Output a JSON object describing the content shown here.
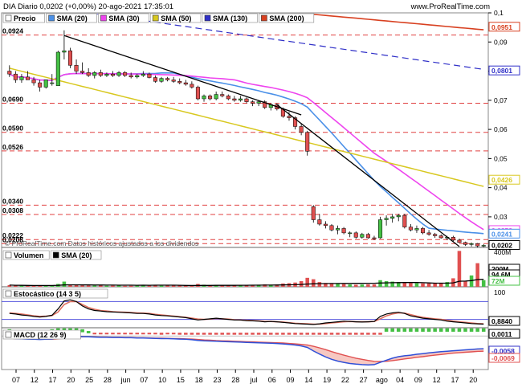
{
  "header": {
    "title": "DIA Diario 0,0202 (+0,00%) 20-ago-2021 17:35:01",
    "brand": "www.ProRealTime.com"
  },
  "colors": {
    "up": "#44c044",
    "down": "#e05050",
    "sma20": "#4a90e8",
    "sma30": "#ee44ee",
    "sma50": "#d8c820",
    "sma130": "#3030c8",
    "sma200": "#d84020",
    "trend": "#000000",
    "hline": "#e04040"
  },
  "legends": {
    "price": [
      {
        "label": "Precio",
        "color": "#ffffff"
      },
      {
        "label": "SMA (20)",
        "color": "#4a90e8"
      },
      {
        "label": "SMA (30)",
        "color": "#ee44ee"
      },
      {
        "label": "SMA (50)",
        "color": "#d8c820"
      },
      {
        "label": "SMA (130)",
        "color": "#3030c8"
      },
      {
        "label": "SMA (200)",
        "color": "#d84020"
      }
    ],
    "volume": [
      {
        "label": "Volumen",
        "color": "#ffffff"
      },
      {
        "label": "SMA (20)",
        "color": "#000000"
      }
    ],
    "stoch": [
      {
        "label": "Estocástico (14 3 5)",
        "color": "#ffffff"
      }
    ],
    "macd": [
      {
        "label": "MACD (12 26 9)",
        "color": "#ffffff"
      }
    ]
  },
  "footer_note": "© ProRealTime.com Datos históricos ajustados a los dividendos",
  "chart_data": {
    "type": "candlestick",
    "x_ticks": [
      "07",
      "12",
      "17",
      "20",
      "25",
      "28",
      "jun",
      "07",
      "10",
      "15",
      "18",
      "23",
      "28",
      "jul",
      "06",
      "09",
      "14",
      "19",
      "22",
      "27",
      "ago",
      "04",
      "09",
      "12",
      "17",
      "20"
    ],
    "price_axis": {
      "ylim": [
        0.0195,
        0.1
      ],
      "ticks": [
        "0,1",
        "0,09",
        "0,08",
        "0,07",
        "0,06",
        "0,05",
        "0,04",
        "0,03",
        "0,02"
      ],
      "left_labels": [
        "0,0924",
        "0,0690",
        "0,0590",
        "0,0526",
        "0,0340",
        "0,0308",
        "0,0222",
        "0,0208"
      ],
      "right_labels": [
        {
          "text": "0,0951",
          "color": "#d84020"
        },
        {
          "text": "0,0801",
          "color": "#3030c8"
        },
        {
          "text": "0,0426",
          "color": "#d8c820"
        },
        {
          "text": "0,0253",
          "color": "#ee44ee"
        },
        {
          "text": "0,0241",
          "color": "#4a90e8"
        },
        {
          "text": "0,0202",
          "color": "#000000"
        }
      ],
      "resistance_levels": [
        0.0924,
        0.069,
        0.059,
        0.0526,
        0.034,
        0.0308,
        0.0222,
        0.0208
      ]
    },
    "ohlc": [
      [
        0.08,
        0.082,
        0.078,
        0.079
      ],
      [
        0.079,
        0.08,
        0.076,
        0.077
      ],
      [
        0.077,
        0.079,
        0.076,
        0.078
      ],
      [
        0.078,
        0.08,
        0.077,
        0.077
      ],
      [
        0.077,
        0.078,
        0.075,
        0.076
      ],
      [
        0.076,
        0.077,
        0.073,
        0.0745
      ],
      [
        0.0745,
        0.077,
        0.074,
        0.077
      ],
      [
        0.076,
        0.079,
        0.075,
        0.076
      ],
      [
        0.075,
        0.087,
        0.075,
        0.0865
      ],
      [
        0.0865,
        0.094,
        0.084,
        0.087
      ],
      [
        0.087,
        0.088,
        0.081,
        0.082
      ],
      [
        0.082,
        0.084,
        0.079,
        0.08
      ],
      [
        0.08,
        0.083,
        0.079,
        0.0795
      ],
      [
        0.0795,
        0.081,
        0.078,
        0.0785
      ],
      [
        0.0785,
        0.08,
        0.0775,
        0.0795
      ],
      [
        0.0795,
        0.0805,
        0.078,
        0.0785
      ],
      [
        0.0785,
        0.0795,
        0.078,
        0.079
      ],
      [
        0.079,
        0.08,
        0.078,
        0.0785
      ],
      [
        0.0785,
        0.08,
        0.078,
        0.0795
      ],
      [
        0.0795,
        0.08,
        0.078,
        0.0785
      ],
      [
        0.0785,
        0.0795,
        0.0775,
        0.078
      ],
      [
        0.078,
        0.079,
        0.0775,
        0.0785
      ],
      [
        0.0785,
        0.08,
        0.078,
        0.079
      ],
      [
        0.079,
        0.0795,
        0.0775,
        0.0778
      ],
      [
        0.0778,
        0.0785,
        0.076,
        0.0765
      ],
      [
        0.0765,
        0.078,
        0.076,
        0.0775
      ],
      [
        0.0775,
        0.078,
        0.0765,
        0.077
      ],
      [
        0.077,
        0.078,
        0.076,
        0.0765
      ],
      [
        0.0765,
        0.0775,
        0.0755,
        0.076
      ],
      [
        0.076,
        0.077,
        0.075,
        0.0755
      ],
      [
        0.0755,
        0.0765,
        0.074,
        0.0745
      ],
      [
        0.0745,
        0.075,
        0.07,
        0.0705
      ],
      [
        0.0705,
        0.072,
        0.0695,
        0.0715
      ],
      [
        0.0715,
        0.072,
        0.07,
        0.0705
      ],
      [
        0.0705,
        0.073,
        0.07,
        0.072
      ],
      [
        0.072,
        0.073,
        0.071,
        0.0715
      ],
      [
        0.0715,
        0.072,
        0.07,
        0.0705
      ],
      [
        0.0705,
        0.0715,
        0.0695,
        0.07
      ],
      [
        0.07,
        0.0715,
        0.0695,
        0.0705
      ],
      [
        0.0705,
        0.071,
        0.069,
        0.0695
      ],
      [
        0.0695,
        0.07,
        0.068,
        0.069
      ],
      [
        0.069,
        0.07,
        0.068,
        0.0695
      ],
      [
        0.0695,
        0.07,
        0.067,
        0.0675
      ],
      [
        0.0675,
        0.069,
        0.0665,
        0.0685
      ],
      [
        0.0685,
        0.069,
        0.0665,
        0.067
      ],
      [
        0.067,
        0.0675,
        0.064,
        0.0645
      ],
      [
        0.0645,
        0.066,
        0.063,
        0.064
      ],
      [
        0.064,
        0.0645,
        0.06,
        0.061
      ],
      [
        0.061,
        0.062,
        0.058,
        0.059
      ],
      [
        0.059,
        0.0595,
        0.051,
        0.0525
      ],
      [
        0.0335,
        0.034,
        0.028,
        0.029
      ],
      [
        0.029,
        0.031,
        0.027,
        0.0275
      ],
      [
        0.0275,
        0.0285,
        0.026,
        0.027
      ],
      [
        0.027,
        0.0275,
        0.025,
        0.0255
      ],
      [
        0.0255,
        0.027,
        0.024,
        0.026
      ],
      [
        0.026,
        0.0265,
        0.024,
        0.0245
      ],
      [
        0.0245,
        0.025,
        0.023,
        0.0245
      ],
      [
        0.0245,
        0.025,
        0.0225,
        0.023
      ],
      [
        0.023,
        0.0245,
        0.0225,
        0.024
      ],
      [
        0.024,
        0.0245,
        0.0225,
        0.0228
      ],
      [
        0.0228,
        0.0235,
        0.022,
        0.0225
      ],
      [
        0.0228,
        0.03,
        0.0225,
        0.029
      ],
      [
        0.029,
        0.0305,
        0.027,
        0.0295
      ],
      [
        0.0295,
        0.031,
        0.028,
        0.03
      ],
      [
        0.03,
        0.031,
        0.0285,
        0.0305
      ],
      [
        0.0305,
        0.031,
        0.026,
        0.0265
      ],
      [
        0.0265,
        0.0275,
        0.025,
        0.0255
      ],
      [
        0.0255,
        0.027,
        0.0245,
        0.026
      ],
      [
        0.026,
        0.0265,
        0.024,
        0.0245
      ],
      [
        0.0245,
        0.0255,
        0.0235,
        0.024
      ],
      [
        0.024,
        0.0245,
        0.0228,
        0.0235
      ],
      [
        0.0235,
        0.024,
        0.0225,
        0.0228
      ],
      [
        0.0228,
        0.0235,
        0.022,
        0.023
      ],
      [
        0.023,
        0.0235,
        0.0215,
        0.022
      ],
      [
        0.022,
        0.0225,
        0.021,
        0.0212
      ],
      [
        0.0212,
        0.0215,
        0.02,
        0.0205
      ],
      [
        0.0205,
        0.0212,
        0.0198,
        0.0208
      ],
      [
        0.0208,
        0.021,
        0.0195,
        0.02
      ],
      [
        0.02,
        0.0206,
        0.0196,
        0.0202
      ]
    ],
    "trend_lines": [
      {
        "from": [
          9,
          0.0922
        ],
        "to": [
          48,
          0.065
        ]
      },
      {
        "from": [
          44,
          0.0685
        ],
        "to": [
          74,
          0.0198
        ]
      }
    ],
    "volume": {
      "ylim": [
        0,
        400
      ],
      "ticks": [
        "400M"
      ],
      "right_labels": [
        {
          "text": "200M",
          "color": "#000000"
        },
        {
          "text": "94,6M",
          "color": "#000000"
        },
        {
          "text": "72M",
          "color": "#44c044"
        }
      ],
      "values": [
        18,
        15,
        12,
        14,
        10,
        12,
        16,
        13,
        30,
        55,
        25,
        20,
        15,
        14,
        12,
        13,
        11,
        12,
        13,
        10,
        11,
        12,
        14,
        12,
        18,
        12,
        13,
        14,
        15,
        16,
        18,
        30,
        22,
        18,
        20,
        17,
        15,
        14,
        16,
        18,
        20,
        22,
        25,
        22,
        24,
        35,
        38,
        45,
        60,
        95,
        80,
        50,
        40,
        35,
        30,
        28,
        25,
        22,
        24,
        26,
        25,
        70,
        60,
        55,
        50,
        45,
        40,
        38,
        36,
        35,
        38,
        40,
        50,
        90,
        380,
        60,
        120,
        250,
        70
      ]
    },
    "stochastic": {
      "ylim": [
        0,
        100
      ],
      "ticks": [
        "100"
      ],
      "level_lines": [
        80,
        20
      ],
      "right_labels": [
        {
          "text": "0,8840",
          "color": "#000000"
        }
      ],
      "k": [
        40,
        38,
        35,
        33,
        30,
        28,
        30,
        34,
        55,
        82,
        86,
        80,
        65,
        55,
        50,
        48,
        46,
        45,
        44,
        43,
        42,
        40,
        40,
        38,
        35,
        33,
        32,
        30,
        28,
        26,
        22,
        18,
        20,
        22,
        24,
        22,
        20,
        18,
        18,
        16,
        15,
        14,
        12,
        13,
        12,
        10,
        8,
        6,
        5,
        4,
        3,
        5,
        8,
        10,
        12,
        14,
        13,
        12,
        11,
        12,
        13,
        30,
        38,
        42,
        44,
        40,
        32,
        28,
        24,
        22,
        20,
        18,
        14,
        12,
        10,
        8,
        6,
        5,
        4
      ],
      "d": [
        42,
        40,
        38,
        35,
        32,
        30,
        31,
        33,
        45,
        70,
        80,
        80,
        70,
        60,
        54,
        50,
        48,
        46,
        45,
        44,
        43,
        42,
        41,
        40,
        37,
        35,
        33,
        31,
        29,
        27,
        24,
        21,
        20,
        21,
        23,
        22,
        21,
        19,
        18,
        17,
        16,
        15,
        13,
        13,
        12,
        11,
        9,
        7,
        6,
        5,
        4,
        4,
        6,
        8,
        10,
        12,
        13,
        12,
        12,
        12,
        13,
        22,
        32,
        38,
        42,
        41,
        36,
        31,
        27,
        24,
        22,
        20,
        17,
        14,
        12,
        10,
        8,
        6,
        5
      ]
    },
    "macd": {
      "right_labels": [
        {
          "text": "0,0011",
          "color": "#000000"
        },
        {
          "text": "-0,0058",
          "color": "#3030c8"
        },
        {
          "text": "-0,0069",
          "color": "#e05050"
        }
      ],
      "macd": [
        -0.001,
        -0.0012,
        -0.0013,
        -0.0014,
        -0.0015,
        -0.0016,
        -0.0015,
        -0.0014,
        -0.0008,
        -0.0002,
        0.0,
        -0.0001,
        -0.0003,
        -0.0004,
        -0.0005,
        -0.0006,
        -0.0006,
        -0.0007,
        -0.0007,
        -0.0008,
        -0.0008,
        -0.0009,
        -0.0009,
        -0.001,
        -0.0011,
        -0.0012,
        -0.0012,
        -0.0013,
        -0.0014,
        -0.0015,
        -0.0017,
        -0.002,
        -0.0022,
        -0.0023,
        -0.0024,
        -0.0025,
        -0.0026,
        -0.0027,
        -0.0028,
        -0.0029,
        -0.003,
        -0.0031,
        -0.0032,
        -0.0033,
        -0.0034,
        -0.0036,
        -0.0038,
        -0.0041,
        -0.0045,
        -0.0052,
        -0.0068,
        -0.0082,
        -0.0095,
        -0.0106,
        -0.0114,
        -0.012,
        -0.0125,
        -0.0128,
        -0.013,
        -0.0131,
        -0.013,
        -0.012,
        -0.011,
        -0.0101,
        -0.0094,
        -0.009,
        -0.0087,
        -0.0083,
        -0.008,
        -0.0077,
        -0.0074,
        -0.0071,
        -0.0069,
        -0.0067,
        -0.0065,
        -0.0063,
        -0.0061,
        -0.0059,
        -0.0058
      ],
      "signal": [
        -0.0011,
        -0.0012,
        -0.0012,
        -0.0013,
        -0.0014,
        -0.0015,
        -0.0015,
        -0.0015,
        -0.0013,
        -0.001,
        -0.0007,
        -0.0005,
        -0.0004,
        -0.0004,
        -0.0004,
        -0.0005,
        -0.0005,
        -0.0006,
        -0.0006,
        -0.0007,
        -0.0007,
        -0.0008,
        -0.0008,
        -0.0009,
        -0.001,
        -0.001,
        -0.0011,
        -0.0012,
        -0.0012,
        -0.0013,
        -0.0014,
        -0.0016,
        -0.0018,
        -0.0019,
        -0.0021,
        -0.0022,
        -0.0023,
        -0.0024,
        -0.0025,
        -0.0026,
        -0.0027,
        -0.0028,
        -0.0029,
        -0.003,
        -0.0031,
        -0.0032,
        -0.0034,
        -0.0036,
        -0.0038,
        -0.0041,
        -0.0047,
        -0.0054,
        -0.0062,
        -0.0071,
        -0.0079,
        -0.0087,
        -0.0094,
        -0.0101,
        -0.0106,
        -0.0111,
        -0.0115,
        -0.0116,
        -0.0115,
        -0.0112,
        -0.0108,
        -0.0104,
        -0.0101,
        -0.0097,
        -0.0094,
        -0.009,
        -0.0087,
        -0.0084,
        -0.0081,
        -0.0078,
        -0.0076,
        -0.0074,
        -0.0072,
        -0.007,
        -0.0069
      ],
      "ylim": [
        -0.0145,
        0.003
      ]
    }
  }
}
